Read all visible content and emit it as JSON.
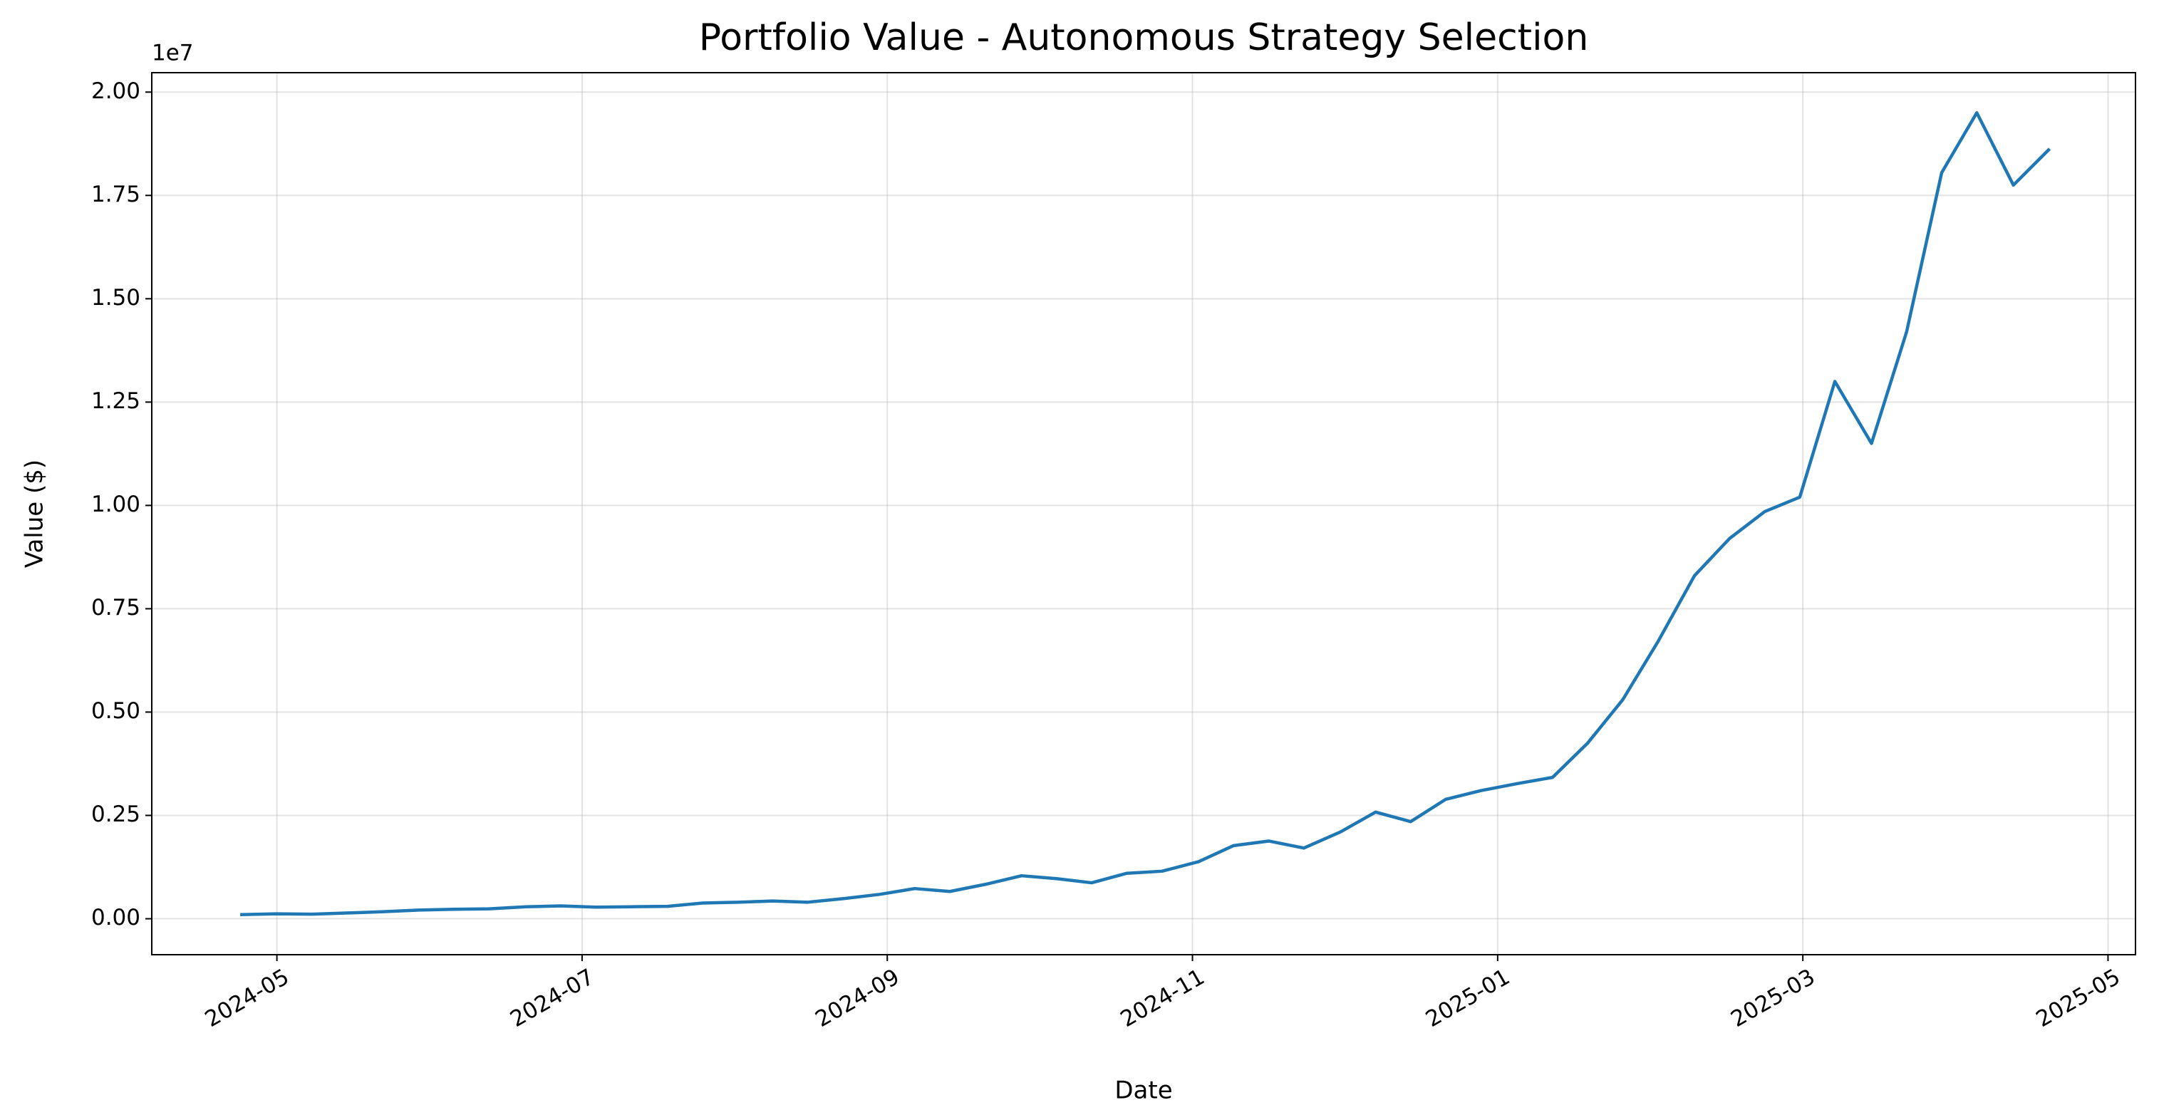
{
  "chart_data": {
    "type": "line",
    "title": "Portfolio Value - Autonomous Strategy Selection",
    "x_label": "Date",
    "y_label": "Value ($)",
    "y_offset_label": "1e7",
    "x": [
      3.77,
      4.0,
      4.23,
      4.47,
      4.7,
      4.93,
      5.16,
      5.39,
      5.63,
      5.86,
      6.09,
      6.32,
      6.56,
      6.79,
      7.02,
      7.25,
      7.48,
      7.72,
      7.95,
      8.18,
      8.41,
      8.64,
      8.88,
      9.11,
      9.34,
      9.57,
      9.8,
      10.04,
      10.27,
      10.5,
      10.73,
      10.97,
      11.2,
      11.43,
      11.66,
      11.89,
      12.13,
      12.36,
      12.59,
      12.82,
      13.05,
      13.29,
      13.52,
      13.75,
      13.98,
      14.21,
      14.45,
      14.68,
      14.91,
      15.14,
      15.38,
      15.61
    ],
    "values": [
      100000,
      120000,
      110000,
      140000,
      170000,
      210000,
      230000,
      240000,
      290000,
      310000,
      280000,
      290000,
      300000,
      380000,
      400000,
      430000,
      400000,
      490000,
      590000,
      730000,
      660000,
      830000,
      1040000,
      970000,
      870000,
      1100000,
      1150000,
      1380000,
      1770000,
      1880000,
      1710000,
      2100000,
      2580000,
      2350000,
      2890000,
      3100000,
      3270000,
      3420000,
      4250000,
      5300000,
      6700000,
      8300000,
      9200000,
      9850000,
      10200000,
      13000000,
      11500000,
      14200000,
      18050000,
      19500000,
      17750000,
      18600000
    ],
    "color": "#1f77b4",
    "xlim": [
      3.18,
      16.18
    ],
    "xticks": [
      {
        "value": 4,
        "label": "2024-05"
      },
      {
        "value": 6,
        "label": "2024-07"
      },
      {
        "value": 8,
        "label": "2024-09"
      },
      {
        "value": 10,
        "label": "2024-11"
      },
      {
        "value": 12,
        "label": "2025-01"
      },
      {
        "value": 14,
        "label": "2025-03"
      },
      {
        "value": 16,
        "label": "2025-05"
      }
    ],
    "ylim": [
      -870000,
      20470000
    ],
    "yticks": [
      {
        "value": 0,
        "label": "0.00"
      },
      {
        "value": 2500000,
        "label": "0.25"
      },
      {
        "value": 5000000,
        "label": "0.50"
      },
      {
        "value": 7500000,
        "label": "0.75"
      },
      {
        "value": 10000000,
        "label": "1.00"
      },
      {
        "value": 12500000,
        "label": "1.25"
      },
      {
        "value": 15000000,
        "label": "1.50"
      },
      {
        "value": 17500000,
        "label": "1.75"
      },
      {
        "value": 20000000,
        "label": "2.00"
      }
    ],
    "grid": true
  }
}
